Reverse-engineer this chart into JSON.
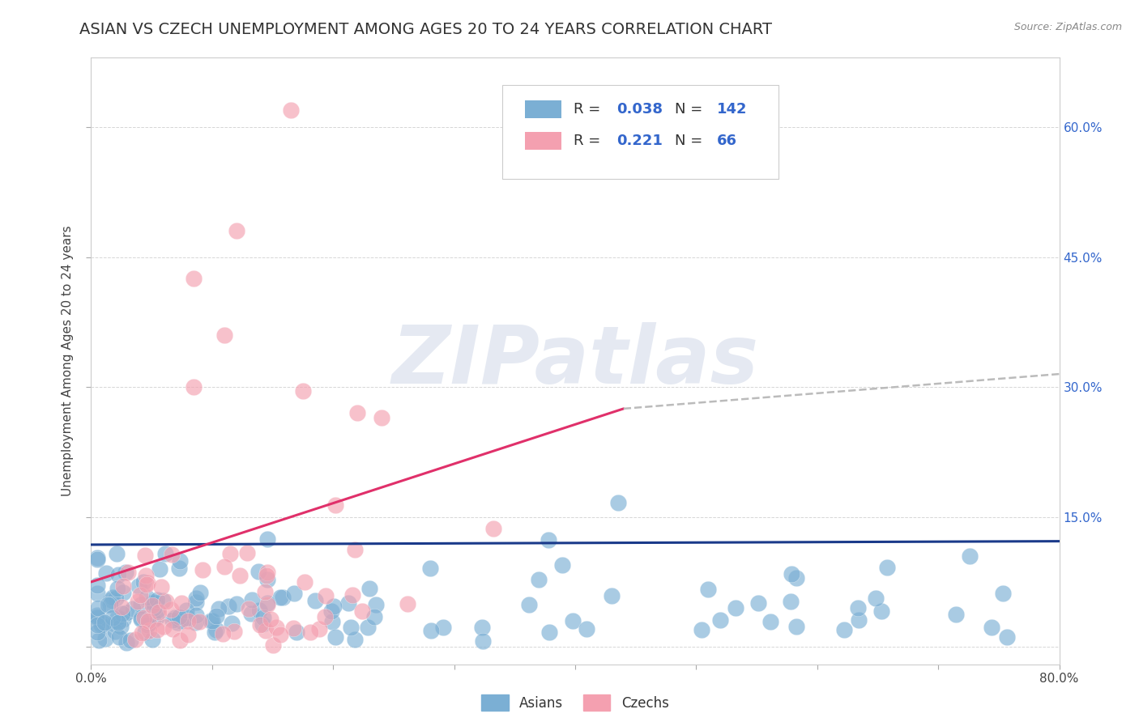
{
  "title": "ASIAN VS CZECH UNEMPLOYMENT AMONG AGES 20 TO 24 YEARS CORRELATION CHART",
  "source_text": "Source: ZipAtlas.com",
  "xlabel": "",
  "ylabel": "Unemployment Among Ages 20 to 24 years",
  "xlim": [
    0.0,
    0.8
  ],
  "ylim": [
    -0.02,
    0.68
  ],
  "xticks": [
    0.0,
    0.1,
    0.2,
    0.3,
    0.4,
    0.5,
    0.6,
    0.7,
    0.8
  ],
  "xticklabels": [
    "0.0%",
    "",
    "",
    "",
    "",
    "",
    "",
    "",
    "80.0%"
  ],
  "yticks": [
    0.0,
    0.15,
    0.3,
    0.45,
    0.6
  ],
  "yticklabels_right": [
    "",
    "15.0%",
    "30.0%",
    "45.0%",
    "60.0%"
  ],
  "asian_color": "#7bafd4",
  "czech_color": "#f4a0b0",
  "asian_line_color": "#1a3a8a",
  "czech_line_color": "#e0306a",
  "asian_R": 0.038,
  "asian_N": 142,
  "czech_R": 0.221,
  "czech_N": 66,
  "watermark_text": "ZIPatlas",
  "background_color": "#ffffff",
  "grid_color": "#cccccc",
  "legend_R_color": "#3366cc",
  "title_fontsize": 14,
  "axis_label_fontsize": 11,
  "tick_fontsize": 11,
  "legend_fontsize": 13,
  "asian_line_y_start": 0.118,
  "asian_line_y_end": 0.122,
  "czech_line_y_start": 0.075,
  "czech_line_y_end": 0.275,
  "czech_line_x_end": 0.44,
  "dashed_line_x_start": 0.44,
  "dashed_line_x_end": 0.8,
  "dashed_line_y_start": 0.275,
  "dashed_line_y_end": 0.315
}
